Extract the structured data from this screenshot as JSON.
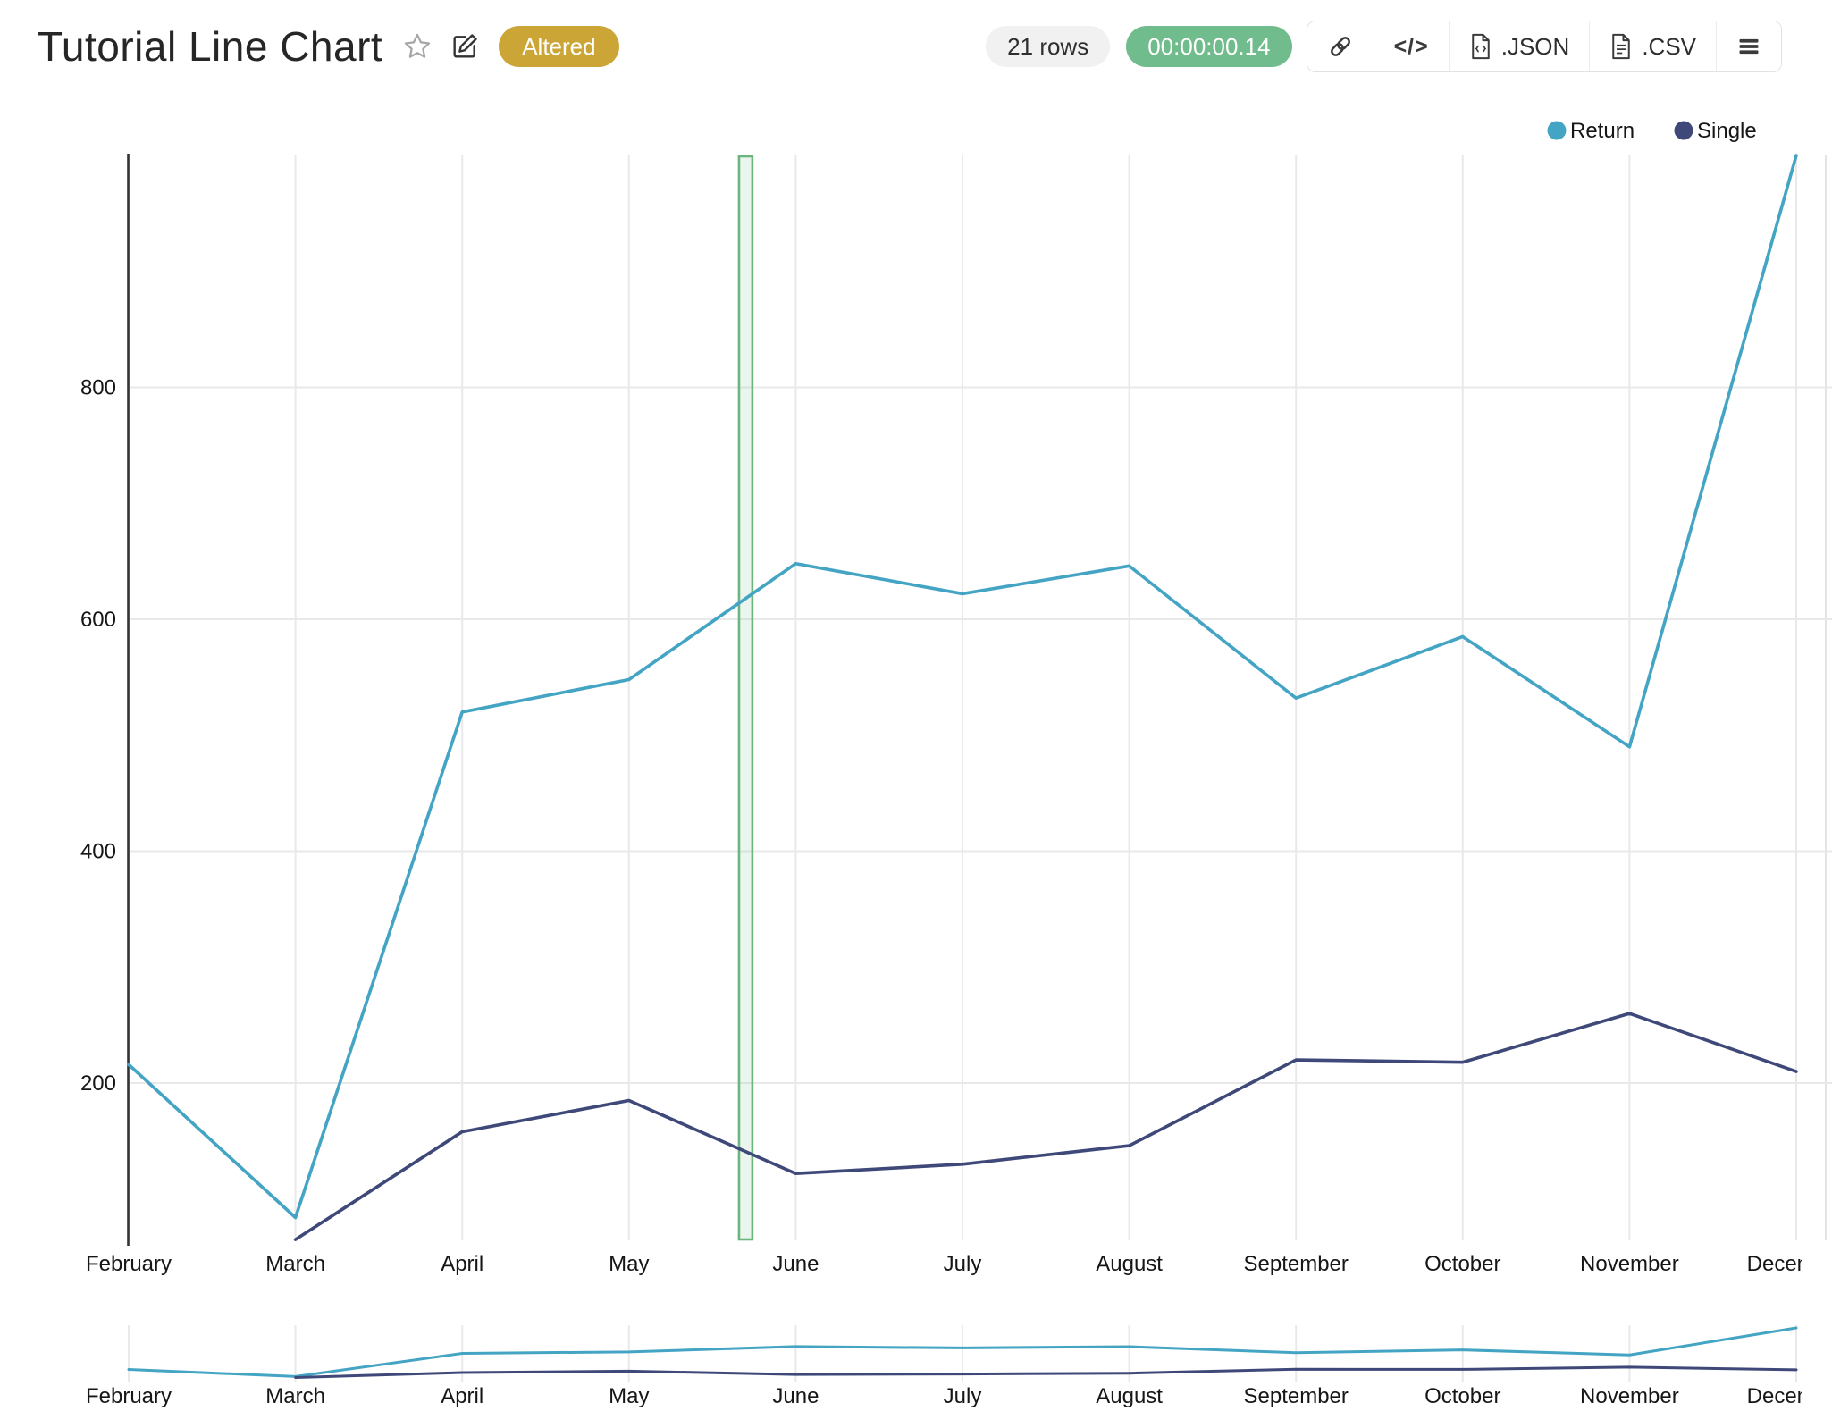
{
  "header": {
    "title": "Tutorial Line Chart",
    "altered_badge": "Altered",
    "rows_label": "21 rows",
    "timer": "00:00:00.14",
    "embed_glyph": "</>",
    "export_json_label": ".JSON",
    "export_csv_label": ".CSV"
  },
  "colors": {
    "return_series": "#44a4c4",
    "single_series": "#3f4979",
    "altered_badge_bg": "#cba637",
    "timer_bg": "#71bc8c",
    "rows_bg": "#f1f1f2",
    "region_highlight": "#6cb57d",
    "grid": "#e9e9e9",
    "axis": "#333333"
  },
  "chart_data": {
    "type": "line",
    "title": "",
    "xlabel": "",
    "ylabel": "",
    "categories": [
      "February",
      "March",
      "April",
      "May",
      "June",
      "July",
      "August",
      "September",
      "October",
      "November",
      "December"
    ],
    "series": [
      {
        "name": "Return",
        "color": "#44a4c4",
        "values": [
          216,
          84,
          520,
          548,
          648,
          622,
          646,
          532,
          585,
          490,
          1000
        ]
      },
      {
        "name": "Single",
        "color": "#3f4979",
        "values": [
          null,
          65,
          158,
          185,
          122,
          130,
          146,
          220,
          218,
          260,
          210
        ]
      }
    ],
    "y_ticks": [
      200,
      400,
      600,
      800
    ],
    "ylim": [
      65,
      1000
    ],
    "grid": true,
    "legend_position": "top-right",
    "region_highlight": {
      "from_month_index": 3.66,
      "to_month_index": 3.74,
      "color": "#6cb57d"
    },
    "subchart": {
      "present": true,
      "note": "mini brush chart with same categories and series"
    }
  }
}
